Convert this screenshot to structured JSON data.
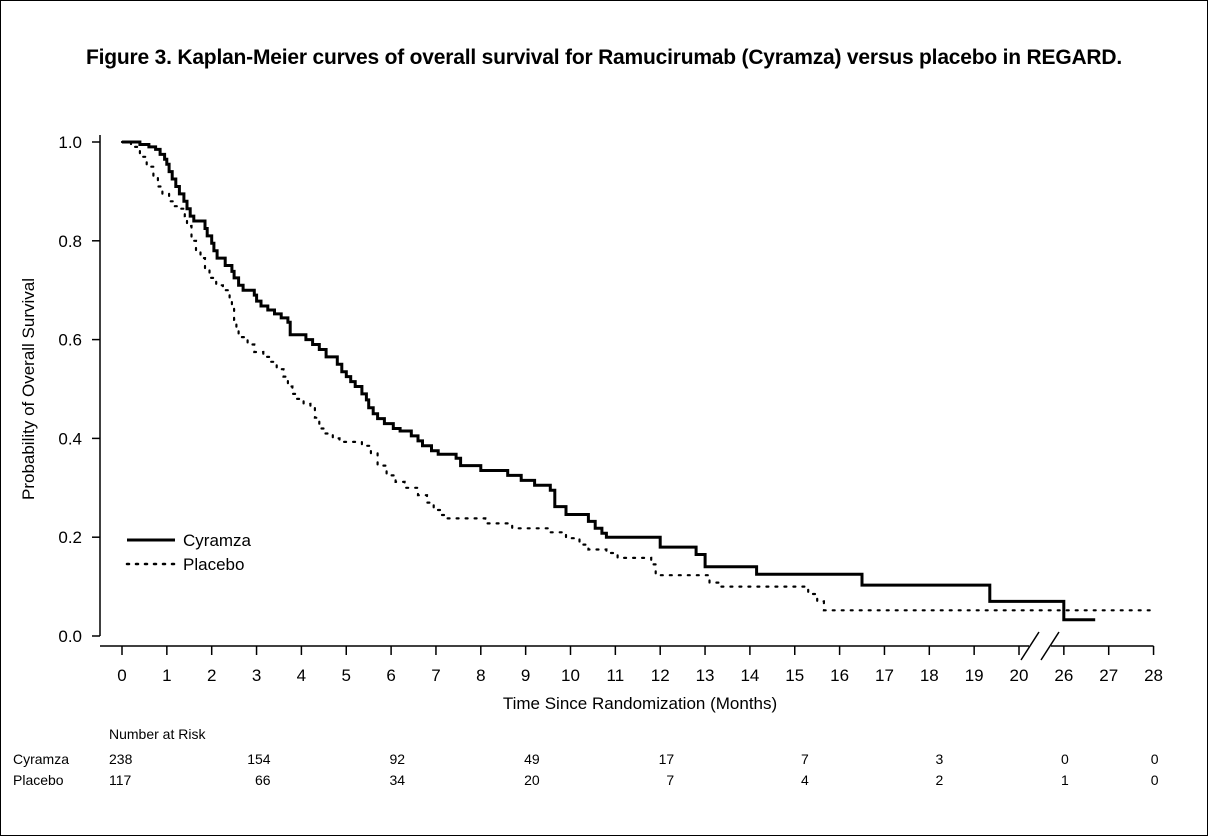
{
  "figure_title": "Figure 3. Kaplan-Meier curves of overall survival for Ramucirumab (Cyramza) versus placebo in REGARD.",
  "chart_data": {
    "type": "line",
    "subtype": "kaplan-meier-step",
    "xlabel": "Time Since Randomization (Months)",
    "ylabel": "Probability of Overall Survival",
    "xlim": [
      0,
      28
    ],
    "ylim": [
      0,
      1
    ],
    "x_axis_break": [
      20,
      26
    ],
    "x_ticks": [
      0,
      1,
      2,
      3,
      4,
      5,
      6,
      7,
      8,
      9,
      10,
      11,
      12,
      13,
      14,
      15,
      16,
      17,
      18,
      19,
      20,
      26,
      27,
      28
    ],
    "y_ticks": [
      "0.0",
      "0.2",
      "0.4",
      "0.6",
      "0.8",
      "1.0"
    ],
    "y_tick_values": [
      0,
      0.2,
      0.4,
      0.6,
      0.8,
      1.0
    ],
    "legend_position": "lower-left",
    "series": [
      {
        "name": "Cyramza",
        "style": "solid",
        "color": "#000000",
        "points": [
          [
            0,
            1.0
          ],
          [
            0.4,
            0.995
          ],
          [
            0.6,
            0.99
          ],
          [
            0.75,
            0.985
          ],
          [
            0.85,
            0.975
          ],
          [
            0.95,
            0.965
          ],
          [
            1.0,
            0.955
          ],
          [
            1.05,
            0.94
          ],
          [
            1.12,
            0.925
          ],
          [
            1.2,
            0.91
          ],
          [
            1.28,
            0.895
          ],
          [
            1.38,
            0.88
          ],
          [
            1.45,
            0.865
          ],
          [
            1.52,
            0.85
          ],
          [
            1.6,
            0.84
          ],
          [
            1.85,
            0.825
          ],
          [
            1.9,
            0.81
          ],
          [
            2.0,
            0.795
          ],
          [
            2.05,
            0.78
          ],
          [
            2.12,
            0.765
          ],
          [
            2.3,
            0.75
          ],
          [
            2.45,
            0.738
          ],
          [
            2.5,
            0.725
          ],
          [
            2.6,
            0.71
          ],
          [
            2.7,
            0.7
          ],
          [
            2.95,
            0.69
          ],
          [
            3.0,
            0.678
          ],
          [
            3.1,
            0.668
          ],
          [
            3.25,
            0.66
          ],
          [
            3.4,
            0.652
          ],
          [
            3.55,
            0.644
          ],
          [
            3.7,
            0.635
          ],
          [
            3.75,
            0.61
          ],
          [
            4.1,
            0.6
          ],
          [
            4.25,
            0.59
          ],
          [
            4.4,
            0.58
          ],
          [
            4.55,
            0.565
          ],
          [
            4.8,
            0.55
          ],
          [
            4.9,
            0.535
          ],
          [
            5.0,
            0.525
          ],
          [
            5.1,
            0.515
          ],
          [
            5.2,
            0.505
          ],
          [
            5.35,
            0.49
          ],
          [
            5.45,
            0.478
          ],
          [
            5.5,
            0.462
          ],
          [
            5.6,
            0.45
          ],
          [
            5.7,
            0.44
          ],
          [
            5.85,
            0.43
          ],
          [
            6.05,
            0.42
          ],
          [
            6.2,
            0.415
          ],
          [
            6.45,
            0.405
          ],
          [
            6.6,
            0.395
          ],
          [
            6.7,
            0.385
          ],
          [
            6.9,
            0.375
          ],
          [
            7.05,
            0.368
          ],
          [
            7.45,
            0.36
          ],
          [
            7.55,
            0.345
          ],
          [
            8.0,
            0.335
          ],
          [
            8.45,
            0.335
          ],
          [
            8.6,
            0.325
          ],
          [
            8.9,
            0.315
          ],
          [
            9.2,
            0.305
          ],
          [
            9.55,
            0.295
          ],
          [
            9.65,
            0.262
          ],
          [
            9.9,
            0.246
          ],
          [
            10.4,
            0.232
          ],
          [
            10.55,
            0.218
          ],
          [
            10.7,
            0.208
          ],
          [
            10.8,
            0.2
          ],
          [
            12.0,
            0.18
          ],
          [
            12.8,
            0.165
          ],
          [
            13.0,
            0.14
          ],
          [
            14.15,
            0.125
          ],
          [
            16.5,
            0.103
          ],
          [
            19.35,
            0.07
          ],
          [
            20.5,
            0.07
          ],
          [
            26.0,
            0.033
          ],
          [
            26.7,
            0.033
          ]
        ]
      },
      {
        "name": "Placebo",
        "style": "dotted",
        "color": "#000000",
        "points": [
          [
            0,
            1.0
          ],
          [
            0.2,
            0.99
          ],
          [
            0.4,
            0.97
          ],
          [
            0.55,
            0.95
          ],
          [
            0.7,
            0.93
          ],
          [
            0.8,
            0.91
          ],
          [
            0.9,
            0.895
          ],
          [
            1.05,
            0.88
          ],
          [
            1.15,
            0.87
          ],
          [
            1.3,
            0.865
          ],
          [
            1.4,
            0.85
          ],
          [
            1.45,
            0.83
          ],
          [
            1.55,
            0.8
          ],
          [
            1.65,
            0.78
          ],
          [
            1.75,
            0.765
          ],
          [
            1.85,
            0.745
          ],
          [
            1.95,
            0.725
          ],
          [
            2.1,
            0.71
          ],
          [
            2.25,
            0.7
          ],
          [
            2.4,
            0.685
          ],
          [
            2.45,
            0.665
          ],
          [
            2.5,
            0.64
          ],
          [
            2.55,
            0.62
          ],
          [
            2.6,
            0.605
          ],
          [
            2.8,
            0.59
          ],
          [
            2.95,
            0.575
          ],
          [
            3.15,
            0.565
          ],
          [
            3.3,
            0.555
          ],
          [
            3.45,
            0.54
          ],
          [
            3.6,
            0.525
          ],
          [
            3.7,
            0.505
          ],
          [
            3.8,
            0.49
          ],
          [
            3.9,
            0.48
          ],
          [
            4.05,
            0.47
          ],
          [
            4.2,
            0.462
          ],
          [
            4.3,
            0.442
          ],
          [
            4.4,
            0.42
          ],
          [
            4.5,
            0.41
          ],
          [
            4.7,
            0.4
          ],
          [
            4.85,
            0.393
          ],
          [
            5.35,
            0.385
          ],
          [
            5.55,
            0.37
          ],
          [
            5.7,
            0.345
          ],
          [
            5.9,
            0.325
          ],
          [
            6.1,
            0.312
          ],
          [
            6.3,
            0.3
          ],
          [
            6.6,
            0.285
          ],
          [
            6.8,
            0.27
          ],
          [
            6.95,
            0.255
          ],
          [
            7.1,
            0.245
          ],
          [
            7.2,
            0.238
          ],
          [
            8.1,
            0.228
          ],
          [
            8.7,
            0.218
          ],
          [
            9.5,
            0.21
          ],
          [
            9.9,
            0.198
          ],
          [
            10.2,
            0.185
          ],
          [
            10.4,
            0.175
          ],
          [
            10.8,
            0.168
          ],
          [
            11.05,
            0.158
          ],
          [
            11.8,
            0.145
          ],
          [
            11.9,
            0.123
          ],
          [
            13.1,
            0.108
          ],
          [
            13.3,
            0.1
          ],
          [
            15.3,
            0.085
          ],
          [
            15.5,
            0.07
          ],
          [
            15.65,
            0.052
          ],
          [
            28.0,
            0.052
          ]
        ]
      }
    ],
    "risk_table": {
      "title": "Number at Risk",
      "times": [
        0,
        3,
        6,
        9,
        12,
        15,
        18,
        26,
        28
      ],
      "rows": [
        {
          "label": "Cyramza",
          "values": [
            "238",
            "154",
            "92",
            "49",
            "17",
            "7",
            "3",
            "0",
            "0"
          ]
        },
        {
          "label": "Placebo",
          "values": [
            "117",
            "66",
            "34",
            "20",
            "7",
            "4",
            "2",
            "1",
            "0"
          ]
        }
      ]
    }
  }
}
